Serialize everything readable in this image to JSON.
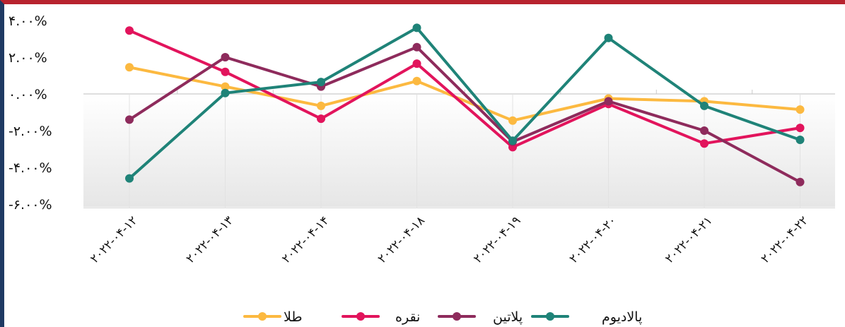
{
  "chart_data": {
    "type": "line",
    "title": "",
    "xlabel": "",
    "ylabel": "",
    "categories": [
      "۲۰۲۲-۰۴-۱۲",
      "۲۰۲۲-۰۴-۱۳",
      "۲۰۲۲-۰۴-۱۴",
      "۲۰۲۲-۰۴-۱۸",
      "۲۰۲۲-۰۴-۱۹",
      "۲۰۲۲-۰۴-۲۰",
      "۲۰۲۲-۰۴-۲۱",
      "۲۰۲۲-۰۴-۲۲"
    ],
    "y_ticks": [
      "۴.۰۰%",
      "۲.۰۰%",
      "۰.۰۰%",
      "-۲.۰۰%",
      "-۴.۰۰%",
      "-۶.۰۰%"
    ],
    "y_tick_values": [
      4,
      2,
      0,
      -2,
      -4,
      -6
    ],
    "ylim": [
      -6.3,
      4.8
    ],
    "legend_position": "bottom",
    "grid": true,
    "series": [
      {
        "name": "طلا",
        "color": "#fcb940",
        "values": [
          1.45,
          0.4,
          -0.65,
          0.7,
          -1.45,
          -0.25,
          -0.4,
          -0.85
        ]
      },
      {
        "name": "نقره",
        "color": "#e2145c",
        "values": [
          3.45,
          1.2,
          -1.35,
          1.65,
          -2.9,
          -0.55,
          -2.7,
          -1.85
        ]
      },
      {
        "name": "پلاتین",
        "color": "#8e2b5c",
        "values": [
          -1.4,
          2.0,
          0.4,
          2.55,
          -2.6,
          -0.4,
          -2.0,
          -4.8
        ]
      },
      {
        "name": "پالادیوم",
        "color": "#1f8378",
        "values": [
          -4.6,
          0.05,
          0.65,
          3.6,
          -2.55,
          3.05,
          -0.65,
          -2.5
        ]
      }
    ]
  }
}
